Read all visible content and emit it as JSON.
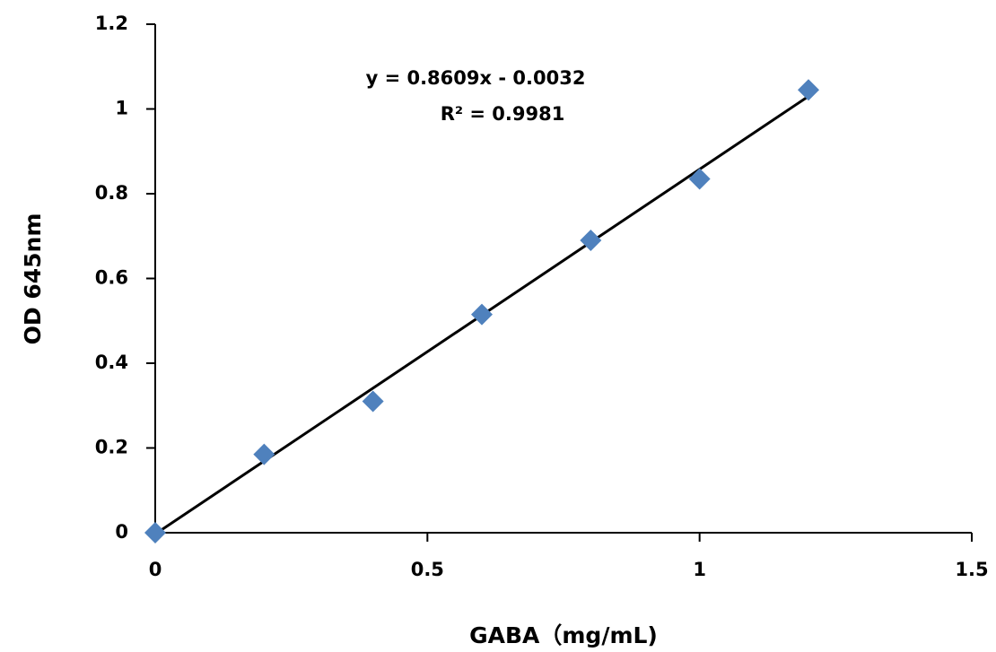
{
  "chart_data": {
    "type": "scatter",
    "x_label": "GABA（mg/mL)",
    "y_label": "OD 645nm",
    "annotations": [
      "y = 0.8609x - 0.0032",
      "R² = 0.9981"
    ],
    "series": [
      {
        "color": "#4f81bd",
        "x": [
          0,
          0.2,
          0.4,
          0.6,
          0.8,
          1,
          1.2
        ],
        "values": [
          0,
          0.185,
          0.31,
          0.515,
          0.69,
          0.835,
          1.045
        ]
      }
    ],
    "trendline": {
      "color": "#000000",
      "x": [
        0,
        1.2
      ],
      "values": [
        -0.0032,
        1.0299
      ]
    },
    "xlim": [
      0,
      1.5
    ],
    "xticks": [
      0,
      0.5,
      1,
      1.5
    ],
    "ylim": [
      0,
      1.2
    ],
    "yticks": [
      0,
      0.2,
      0.4,
      0.6,
      0.8,
      1,
      1.2
    ],
    "grid": false
  }
}
